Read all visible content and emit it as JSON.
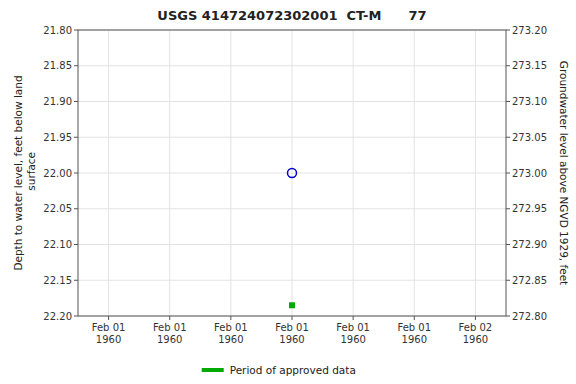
{
  "chart_data": {
    "type": "scatter",
    "title": "USGS 414724072302001  CT-M      77",
    "ylabel": "Depth to water level, feet below land\n surface",
    "y2label": "Groundwater level above NGVD 1929, feet",
    "categories": [
      "Feb 01\n1960",
      "Feb 01\n1960",
      "Feb 01\n1960",
      "Feb 01\n1960",
      "Feb 01\n1960",
      "Feb 01\n1960",
      "Feb 02\n1960"
    ],
    "series": [
      {
        "color": "#0000cc",
        "marker": "circle-open",
        "values": [
          null,
          null,
          null,
          22.0,
          null,
          null,
          null
        ]
      },
      {
        "name": "Period of approved data",
        "color": "#00aa00",
        "marker": "square",
        "values": [
          null,
          null,
          null,
          22.185,
          null,
          null,
          null
        ]
      }
    ],
    "ylim": [
      22.2,
      21.8
    ],
    "yticks": [
      {
        "value": 21.8,
        "label": "21.80"
      },
      21.85,
      {
        "value": 21.9,
        "label": "21.90"
      },
      21.95,
      {
        "value": 22.0,
        "label": "22.00"
      },
      22.05,
      {
        "value": 22.1,
        "label": "22.10"
      },
      22.15,
      {
        "value": 22.2,
        "label": "22.20"
      }
    ],
    "y2lim": [
      272.8,
      273.2
    ],
    "y2ticks": [
      {
        "value": 272.8,
        "label": "272.80"
      },
      272.85,
      {
        "value": 272.9,
        "label": "272.90"
      },
      272.95,
      {
        "value": 273.0,
        "label": "273.00"
      },
      273.05,
      {
        "value": 273.1,
        "label": "273.10"
      },
      273.15,
      {
        "value": 273.2,
        "label": "273.20"
      }
    ],
    "grid": true,
    "legend": "bottom"
  }
}
